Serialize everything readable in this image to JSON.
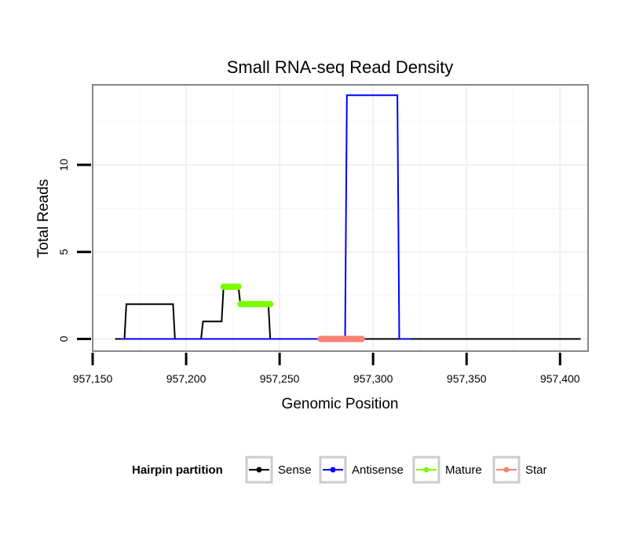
{
  "chart_data": {
    "type": "line",
    "title": "Small RNA-seq Read Density",
    "xlabel": "Genomic Position",
    "ylabel": "Total Reads",
    "xlim": [
      957150,
      957415
    ],
    "ylim": [
      -0.7,
      14.6
    ],
    "x_ticks": [
      957150,
      957200,
      957250,
      957300,
      957350,
      957400
    ],
    "x_tick_labels": [
      "957,150",
      "957,200",
      "957,250",
      "957,300",
      "957,350",
      "957,400"
    ],
    "y_ticks": [
      0,
      5,
      10
    ],
    "y_tick_labels": [
      "0",
      "5",
      "10"
    ],
    "grid": true,
    "legend": {
      "title": "Hairpin partition",
      "position": "bottom",
      "entries": [
        {
          "name": "Sense",
          "color": "#000000"
        },
        {
          "name": "Antisense",
          "color": "#0000ff"
        },
        {
          "name": "Mature",
          "color": "#7cfc00"
        },
        {
          "name": "Star",
          "color": "#fa8072"
        }
      ]
    },
    "series": [
      {
        "name": "Sense",
        "color": "#000000",
        "x": [
          957162,
          957167,
          957168,
          957193,
          957194,
          957208,
          957209,
          957219,
          957220,
          957228,
          957229,
          957244,
          957245,
          957411
        ],
        "y": [
          0,
          0,
          2,
          2,
          0,
          0,
          1,
          1,
          3,
          3,
          2,
          2,
          0,
          0
        ]
      },
      {
        "name": "Antisense",
        "color": "#0000ff",
        "x": [
          957165,
          957285,
          957286,
          957313,
          957314,
          957320
        ],
        "y": [
          0,
          0,
          14,
          14,
          0,
          0
        ]
      },
      {
        "name": "Mature",
        "color": "#7cfc00",
        "segments": [
          {
            "x": [
              957220,
              957228
            ],
            "y": 3
          },
          {
            "x": [
              957229,
              957245
            ],
            "y": 2
          }
        ]
      },
      {
        "name": "Star",
        "color": "#fa8072",
        "segments": [
          {
            "x": [
              957272,
              957294
            ],
            "y": 0
          }
        ]
      }
    ]
  }
}
